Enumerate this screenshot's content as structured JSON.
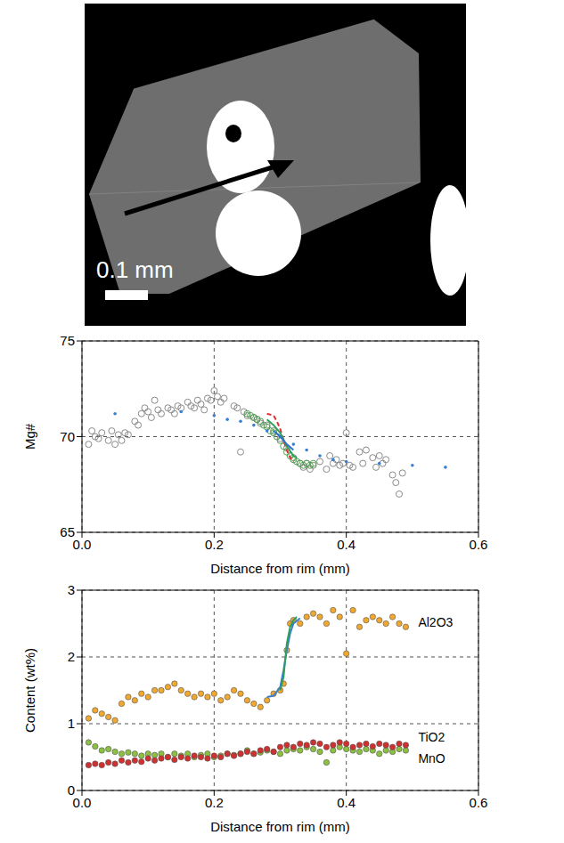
{
  "image": {
    "scale_bar_label": "0.1 mm"
  },
  "chart_data": [
    {
      "type": "scatter",
      "x_label": "Distance from rim (mm)",
      "y_label": "Mg#",
      "xlim": [
        0,
        0.6
      ],
      "xticks": [
        {
          "value": 0,
          "label": "0.0"
        },
        0.2,
        0.4,
        0.6
      ],
      "ylim": [
        65,
        75
      ],
      "yticks": [
        65,
        70,
        75
      ],
      "grid": true,
      "series": [
        {
          "color": "#8a8a8a",
          "marker": "open_circle",
          "x": [
            0.01,
            0.015,
            0.02,
            0.025,
            0.03,
            0.04,
            0.045,
            0.05,
            0.055,
            0.06,
            0.065,
            0.07,
            0.08,
            0.085,
            0.09,
            0.095,
            0.1,
            0.105,
            0.11,
            0.115,
            0.12,
            0.13,
            0.135,
            0.14,
            0.145,
            0.15,
            0.16,
            0.165,
            0.17,
            0.175,
            0.18,
            0.185,
            0.19,
            0.195,
            0.2,
            0.205,
            0.21,
            0.215,
            0.23,
            0.235,
            0.24,
            0.245,
            0.25,
            0.26,
            0.265,
            0.27,
            0.28,
            0.29,
            0.3,
            0.31,
            0.32,
            0.33,
            0.335,
            0.34,
            0.345,
            0.35,
            0.36,
            0.37,
            0.375,
            0.38,
            0.385,
            0.39,
            0.395,
            0.4,
            0.405,
            0.41,
            0.42,
            0.425,
            0.43,
            0.44,
            0.445,
            0.45,
            0.455,
            0.46,
            0.47,
            0.475,
            0.48,
            0.485
          ],
          "values": [
            69.6,
            70.3,
            70.0,
            69.9,
            70.2,
            69.8,
            70.3,
            69.6,
            70.1,
            69.8,
            70.2,
            70.1,
            70.8,
            70.6,
            71.2,
            71.5,
            71.3,
            71.0,
            71.9,
            71.4,
            71.2,
            71.5,
            71.4,
            71.2,
            71.6,
            71.5,
            71.8,
            71.6,
            71.5,
            71.9,
            71.7,
            71.4,
            72.0,
            71.9,
            72.4,
            72.1,
            71.8,
            72.0,
            71.6,
            71.5,
            69.2,
            71.3,
            71.1,
            71.0,
            70.9,
            70.7,
            70.6,
            70.3,
            69.9,
            69.4,
            68.9,
            68.6,
            68.4,
            68.6,
            68.3,
            68.5,
            68.7,
            68.3,
            69.0,
            68.6,
            68.8,
            68.5,
            68.6,
            70.2,
            68.5,
            68.4,
            69.2,
            68.6,
            69.3,
            68.9,
            68.4,
            69.0,
            68.6,
            68.8,
            68.0,
            67.6,
            67.0,
            68.1
          ]
        },
        {
          "color": "#4fa04f",
          "marker": "open_circle",
          "x": [
            0.25,
            0.255,
            0.26,
            0.265,
            0.27,
            0.275,
            0.28,
            0.285,
            0.29,
            0.295,
            0.3,
            0.305,
            0.31,
            0.315,
            0.32,
            0.325,
            0.33,
            0.335,
            0.34,
            0.345,
            0.35
          ],
          "values": [
            71.2,
            71.1,
            71.0,
            70.9,
            70.8,
            70.6,
            70.5,
            70.3,
            70.2,
            70.0,
            69.8,
            69.5,
            69.2,
            69.0,
            68.8,
            68.7,
            68.6,
            68.5,
            68.6,
            68.5,
            68.6
          ]
        },
        {
          "color": "#3a7fd0",
          "marker": "dot",
          "x": [
            0.05,
            0.15,
            0.2,
            0.22,
            0.24,
            0.26,
            0.28,
            0.3,
            0.32,
            0.34,
            0.36,
            0.38,
            0.4,
            0.45,
            0.5,
            0.55
          ],
          "values": [
            71.2,
            71.3,
            71.1,
            70.9,
            70.8,
            70.6,
            70.3,
            70.0,
            69.6,
            69.3,
            69.0,
            68.8,
            68.7,
            68.6,
            68.5,
            68.4
          ]
        },
        {
          "type": "line",
          "color": "#e03030",
          "line_style": "dashed",
          "x": [
            0.28,
            0.29,
            0.295,
            0.3,
            0.305,
            0.31,
            0.315,
            0.32
          ],
          "values": [
            71.2,
            71.1,
            70.8,
            70.4,
            69.8,
            69.3,
            68.9,
            68.7
          ]
        },
        {
          "type": "line",
          "color": "#2e9e5a",
          "line_style": "solid",
          "x": [
            0.28,
            0.29,
            0.3,
            0.31,
            0.32,
            0.325
          ],
          "values": [
            70.9,
            70.6,
            70.2,
            69.5,
            69.0,
            68.9
          ]
        },
        {
          "type": "line",
          "color": "#3070d0",
          "line_style": "solid",
          "x": [
            0.29,
            0.3,
            0.31,
            0.32
          ],
          "values": [
            70.3,
            70.0,
            69.6,
            69.3
          ]
        }
      ]
    },
    {
      "type": "scatter",
      "x_label": "Distance from rim (mm)",
      "y_label": "Content (wt%)",
      "xlim": [
        0,
        0.6
      ],
      "xticks": [
        {
          "value": 0,
          "label": "0.0"
        },
        0.2,
        0.4,
        0.6
      ],
      "ylim": [
        0,
        3
      ],
      "yticks": [
        0,
        1,
        2,
        3
      ],
      "grid": true,
      "series": [
        {
          "name": "Al2O3",
          "color": "#f0a830",
          "marker": "circle",
          "x": [
            0.01,
            0.02,
            0.03,
            0.04,
            0.05,
            0.06,
            0.07,
            0.08,
            0.09,
            0.1,
            0.11,
            0.12,
            0.13,
            0.14,
            0.15,
            0.16,
            0.17,
            0.18,
            0.19,
            0.2,
            0.21,
            0.22,
            0.23,
            0.24,
            0.25,
            0.26,
            0.27,
            0.28,
            0.29,
            0.3,
            0.305,
            0.31,
            0.315,
            0.32,
            0.33,
            0.34,
            0.35,
            0.36,
            0.37,
            0.38,
            0.39,
            0.4,
            0.41,
            0.42,
            0.43,
            0.44,
            0.45,
            0.46,
            0.47,
            0.48,
            0.49
          ],
          "values": [
            1.08,
            1.2,
            1.15,
            1.1,
            1.05,
            1.3,
            1.4,
            1.35,
            1.45,
            1.4,
            1.5,
            1.5,
            1.55,
            1.6,
            1.5,
            1.45,
            1.4,
            1.45,
            1.4,
            1.45,
            1.35,
            1.4,
            1.5,
            1.45,
            1.35,
            1.3,
            1.25,
            1.35,
            1.45,
            1.5,
            1.6,
            2.1,
            2.5,
            2.55,
            2.5,
            2.6,
            2.65,
            2.6,
            2.5,
            2.7,
            2.6,
            2.05,
            2.7,
            2.45,
            2.55,
            2.6,
            2.55,
            2.5,
            2.6,
            2.5,
            2.45
          ]
        },
        {
          "name": "TiO2",
          "color": "#8cc040",
          "marker": "circle",
          "x": [
            0.01,
            0.02,
            0.03,
            0.04,
            0.05,
            0.06,
            0.07,
            0.08,
            0.09,
            0.1,
            0.11,
            0.12,
            0.13,
            0.14,
            0.15,
            0.16,
            0.17,
            0.18,
            0.19,
            0.2,
            0.21,
            0.22,
            0.23,
            0.24,
            0.25,
            0.26,
            0.27,
            0.28,
            0.29,
            0.3,
            0.31,
            0.32,
            0.33,
            0.34,
            0.35,
            0.36,
            0.37,
            0.38,
            0.39,
            0.4,
            0.41,
            0.42,
            0.43,
            0.44,
            0.45,
            0.46,
            0.47,
            0.48,
            0.49
          ],
          "values": [
            0.72,
            0.66,
            0.6,
            0.62,
            0.58,
            0.55,
            0.57,
            0.55,
            0.52,
            0.55,
            0.53,
            0.55,
            0.5,
            0.55,
            0.52,
            0.55,
            0.5,
            0.53,
            0.55,
            0.5,
            0.52,
            0.55,
            0.53,
            0.55,
            0.6,
            0.55,
            0.57,
            0.6,
            0.58,
            0.55,
            0.6,
            0.62,
            0.6,
            0.65,
            0.62,
            0.58,
            0.42,
            0.6,
            0.65,
            0.62,
            0.6,
            0.58,
            0.62,
            0.6,
            0.55,
            0.6,
            0.58,
            0.62,
            0.6
          ]
        },
        {
          "name": "MnO",
          "color": "#d03030",
          "marker": "circle",
          "x": [
            0.01,
            0.02,
            0.03,
            0.04,
            0.05,
            0.06,
            0.07,
            0.08,
            0.09,
            0.1,
            0.11,
            0.12,
            0.13,
            0.14,
            0.15,
            0.16,
            0.17,
            0.18,
            0.19,
            0.2,
            0.21,
            0.22,
            0.23,
            0.24,
            0.25,
            0.26,
            0.27,
            0.28,
            0.29,
            0.3,
            0.31,
            0.32,
            0.33,
            0.34,
            0.35,
            0.36,
            0.37,
            0.38,
            0.39,
            0.4,
            0.41,
            0.42,
            0.43,
            0.44,
            0.45,
            0.46,
            0.47,
            0.48,
            0.49
          ],
          "values": [
            0.38,
            0.4,
            0.38,
            0.42,
            0.4,
            0.45,
            0.42,
            0.45,
            0.43,
            0.48,
            0.45,
            0.48,
            0.5,
            0.46,
            0.5,
            0.48,
            0.52,
            0.5,
            0.48,
            0.52,
            0.5,
            0.55,
            0.52,
            0.55,
            0.58,
            0.55,
            0.6,
            0.62,
            0.58,
            0.65,
            0.68,
            0.65,
            0.7,
            0.68,
            0.72,
            0.7,
            0.65,
            0.68,
            0.72,
            0.7,
            0.65,
            0.68,
            0.7,
            0.66,
            0.7,
            0.68,
            0.65,
            0.7,
            0.68
          ]
        },
        {
          "type": "line",
          "color": "#3a7fd0",
          "line_style": "solid",
          "x": [
            0.28,
            0.29,
            0.3,
            0.305,
            0.31,
            0.315,
            0.32,
            0.33
          ],
          "values": [
            1.4,
            1.42,
            1.55,
            1.8,
            2.1,
            2.35,
            2.5,
            2.58
          ]
        },
        {
          "type": "line",
          "color": "#2e9e5a",
          "line_style": "solid",
          "x": [
            0.3,
            0.305,
            0.31,
            0.315,
            0.32,
            0.325
          ],
          "values": [
            1.5,
            1.7,
            2.2,
            2.45,
            2.55,
            2.6
          ]
        }
      ]
    }
  ]
}
